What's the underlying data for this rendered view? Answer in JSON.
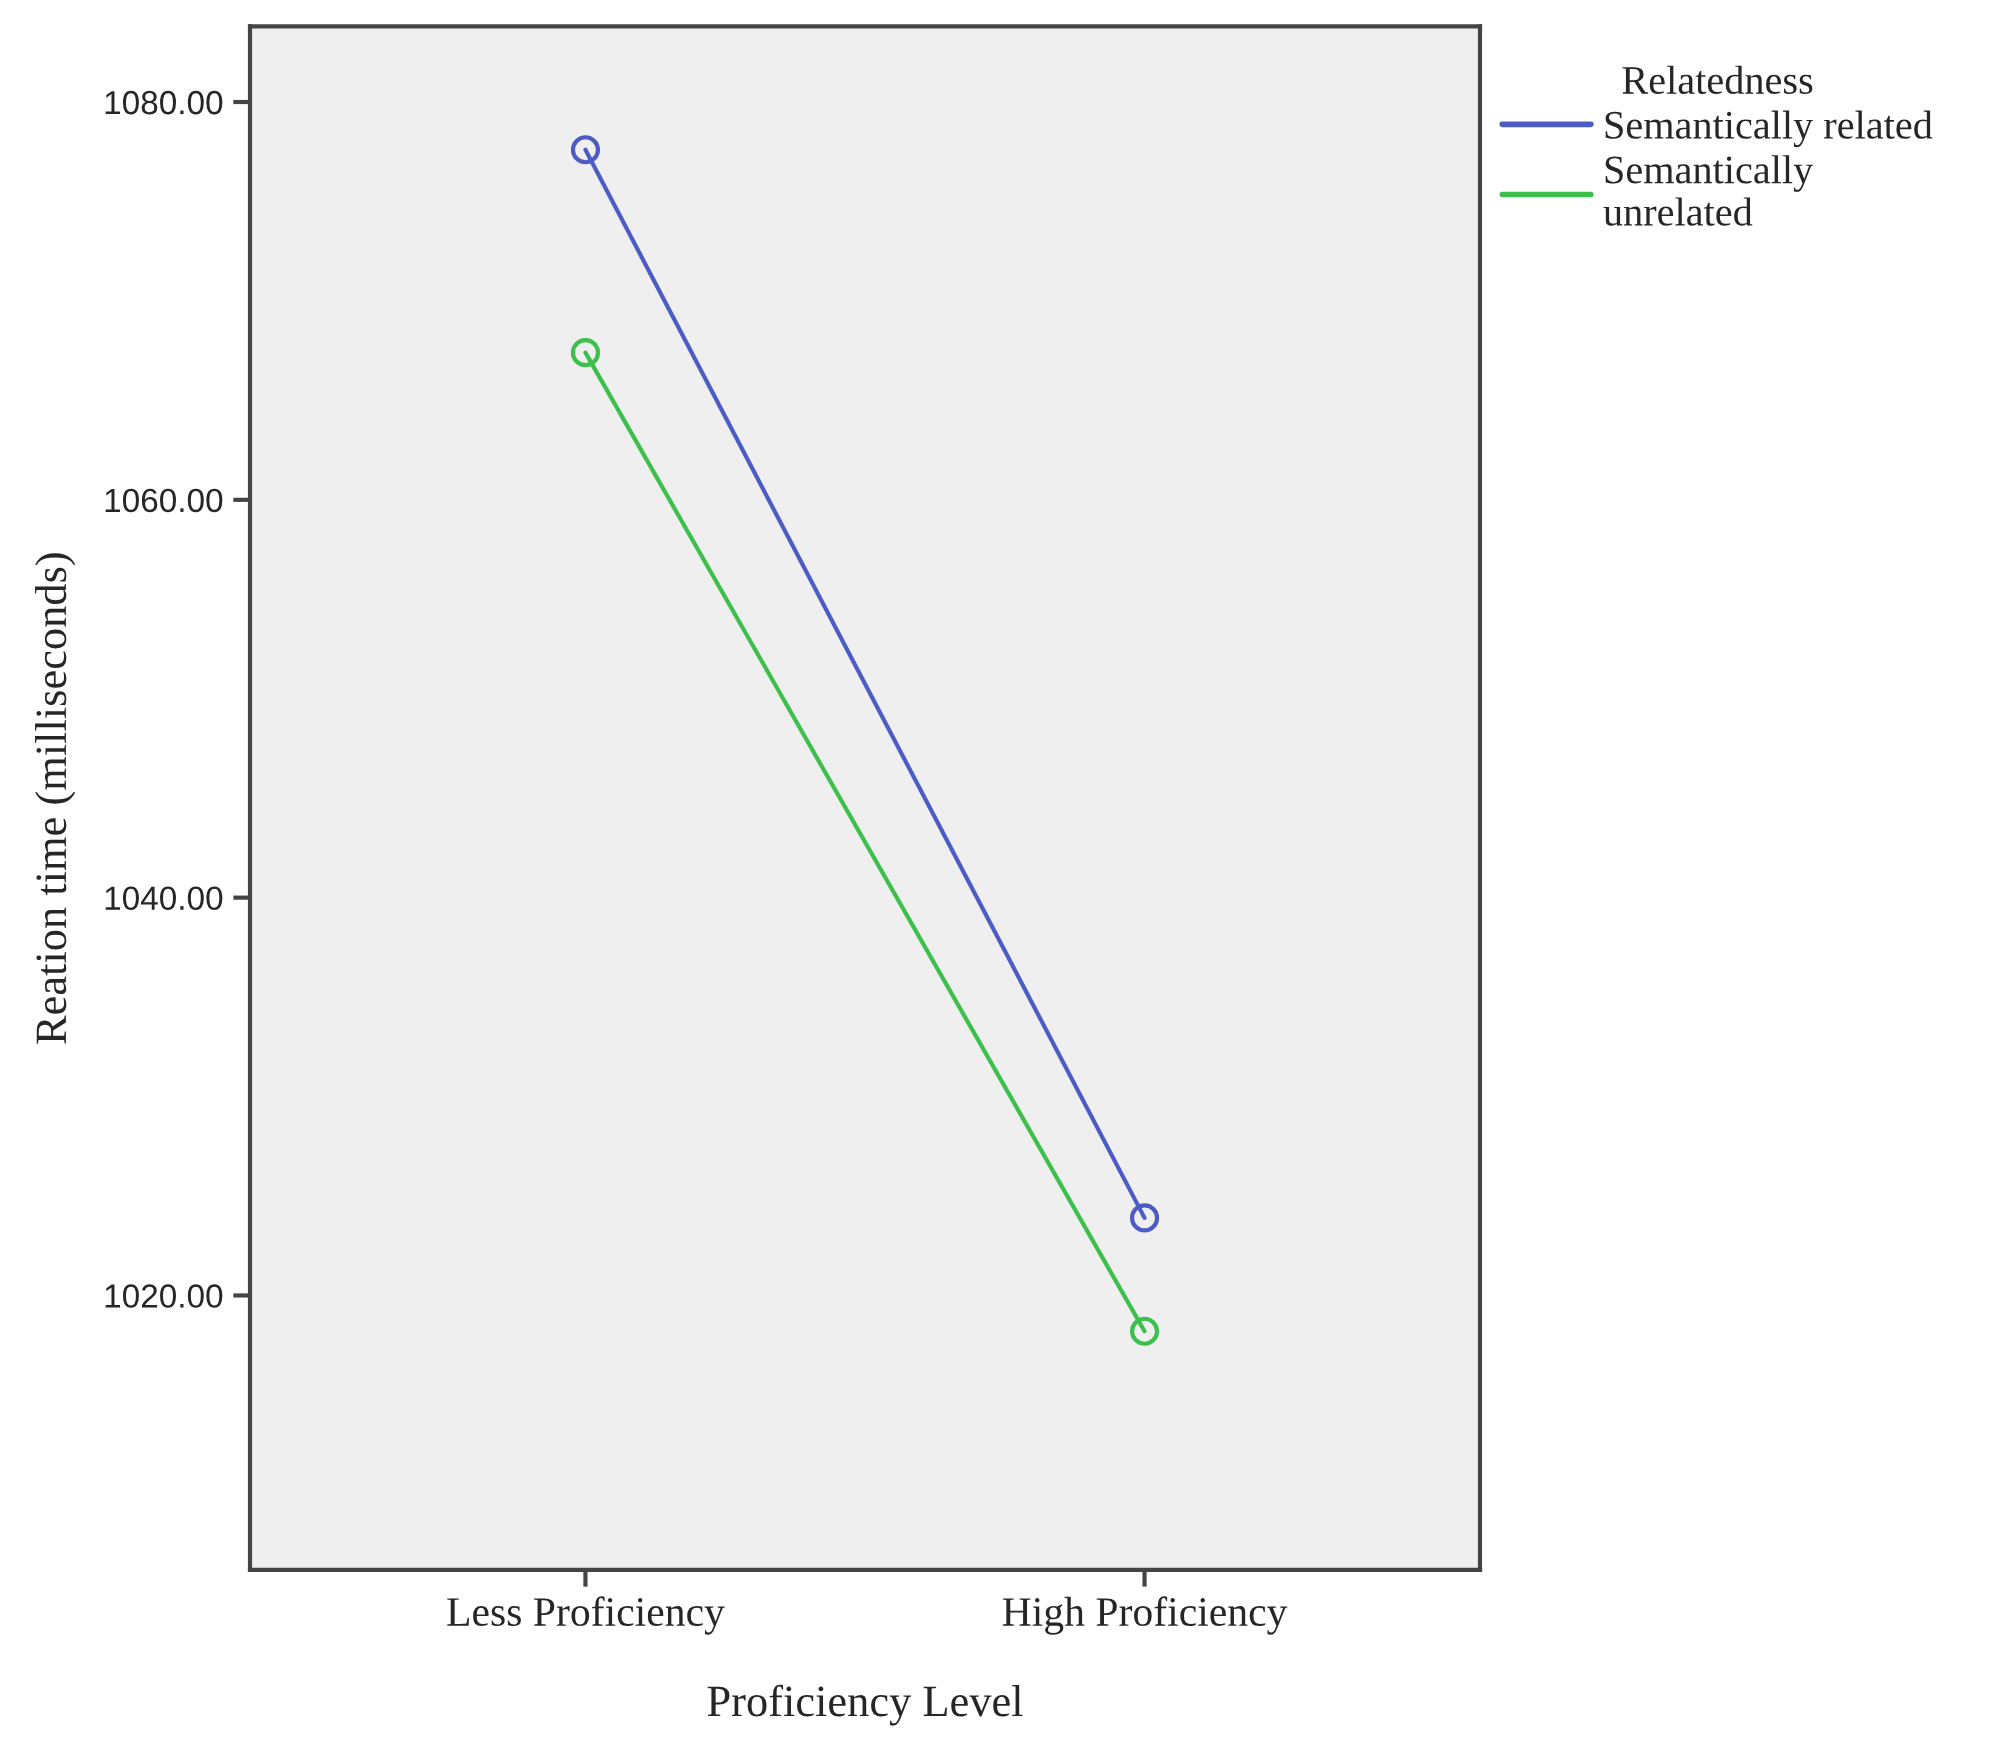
{
  "chart_data": {
    "type": "line",
    "xlabel": "Proficiency Level",
    "ylabel": "Reation time (milliseconds)",
    "legend_title": "Relatedness",
    "categories": [
      "Less Proficiency",
      "High Proficiency"
    ],
    "series": [
      {
        "name": "Semantically related",
        "color": "#4c5cc4",
        "values": [
          1077.6,
          1023.9
        ]
      },
      {
        "name": "Semantically\nunrelated",
        "color": "#3dbf4c",
        "values": [
          1067.4,
          1018.2
        ]
      }
    ],
    "ylim": [
      1006.2,
      1083.8
    ],
    "yticks": [
      {
        "value": 1020,
        "label": "1020.00"
      },
      {
        "value": 1040,
        "label": "1040.00"
      },
      {
        "value": 1060,
        "label": "1060.00"
      },
      {
        "value": 1080,
        "label": "1080.00"
      }
    ],
    "marker": "circle",
    "line_style": "solid",
    "grid": false,
    "legend": "right"
  }
}
